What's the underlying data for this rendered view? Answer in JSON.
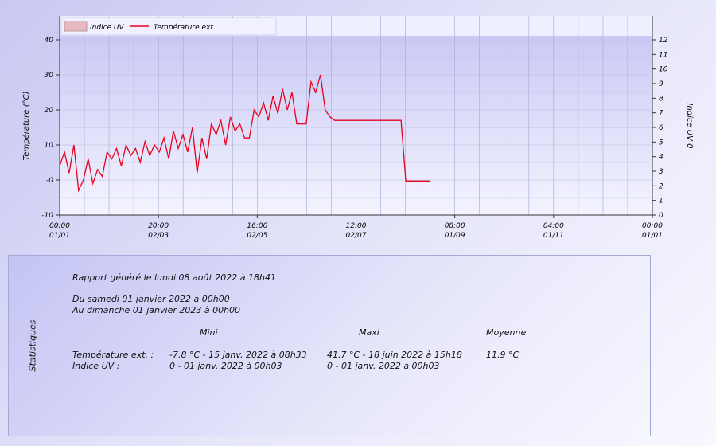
{
  "chart_data": {
    "type": "line",
    "legend": {
      "placement": "top-left",
      "items": [
        {
          "label": "Indice UV",
          "kind": "area",
          "color": "#e8b7c0"
        },
        {
          "label": "Température ext.",
          "kind": "line",
          "color": "#e8001c"
        }
      ]
    },
    "y_left": {
      "label": "Température (°C)",
      "range": [
        -10,
        40
      ],
      "ticks": [
        -10,
        "-0",
        10,
        20,
        30,
        40
      ]
    },
    "y_right": {
      "label": "Indice UV 0",
      "range": [
        0,
        12
      ],
      "ticks": [
        0,
        1,
        2,
        3,
        4,
        5,
        6,
        7,
        8,
        9,
        10,
        11,
        12
      ]
    },
    "x_ticks": [
      {
        "time": "00:00",
        "date": "01/01"
      },
      {
        "time": "20:00",
        "date": "02/03"
      },
      {
        "time": "16:00",
        "date": "02/05"
      },
      {
        "time": "12:00",
        "date": "02/07"
      },
      {
        "time": "08:00",
        "date": "01/09"
      },
      {
        "time": "04:00",
        "date": "01/11"
      },
      {
        "time": "00:00",
        "date": "01/01"
      }
    ],
    "grid": true,
    "series": [
      {
        "name": "Température ext.",
        "color": "#e8001c",
        "axis": "left",
        "x_fraction": [
          0,
          0.008,
          0.016,
          0.024,
          0.032,
          0.04,
          0.048,
          0.056,
          0.064,
          0.072,
          0.08,
          0.088,
          0.096,
          0.104,
          0.112,
          0.12,
          0.128,
          0.136,
          0.144,
          0.152,
          0.16,
          0.168,
          0.176,
          0.184,
          0.192,
          0.2,
          0.208,
          0.216,
          0.224,
          0.232,
          0.24,
          0.248,
          0.256,
          0.264,
          0.272,
          0.28,
          0.288,
          0.296,
          0.304,
          0.312,
          0.32,
          0.328,
          0.336,
          0.344,
          0.352,
          0.36,
          0.368,
          0.376,
          0.384,
          0.392,
          0.4,
          0.408,
          0.416,
          0.424,
          0.432,
          0.44,
          0.448,
          0.456,
          0.464,
          0.472,
          0.48,
          0.488,
          0.496,
          0.504,
          0.512,
          0.52,
          0.528,
          0.536,
          0.544,
          0.552,
          0.56,
          0.568,
          0.576,
          0.584,
          0.592,
          0.6,
          0.608,
          0.616,
          0.624
        ],
        "values": [
          4,
          8,
          2,
          10,
          -3,
          0,
          6,
          -1,
          3,
          1,
          8,
          6,
          9,
          4,
          10,
          7,
          9,
          5,
          11,
          7,
          10,
          8,
          12,
          6,
          14,
          9,
          13,
          8,
          15,
          2,
          12,
          6,
          16,
          13,
          17,
          10,
          18,
          14,
          16,
          12,
          12,
          20,
          18,
          22,
          17,
          24,
          19,
          26,
          20,
          25,
          16,
          16,
          16,
          28,
          25,
          30,
          20,
          18,
          17,
          17,
          17,
          17,
          17,
          17,
          17,
          17,
          17,
          17,
          17,
          17,
          17,
          17,
          17,
          -0.3,
          -0.3,
          -0.3,
          -0.3,
          -0.3,
          -0.3
        ]
      },
      {
        "name": "Indice UV",
        "color": "#e8b7c0",
        "axis": "right",
        "values": [
          0
        ]
      }
    ]
  },
  "stats": {
    "side_label": "Statistiques",
    "report": "Rapport généré le lundi 08 août 2022 à 18h41",
    "from": "Du samedi 01 janvier 2022 à 00h00",
    "to": "Au dimanche 01 janvier 2023 à 00h00",
    "headers": [
      "Mini",
      "Maxi",
      "Moyenne"
    ],
    "rows": [
      {
        "label": "Température ext. :",
        "min": "-7.8 °C - 15 janv. 2022 à 08h33",
        "max": "41.7 °C - 18 juin 2022 à 15h18",
        "avg": "11.9 °C"
      },
      {
        "label": "Indice UV :",
        "min": "0 - 01 janv. 2022 à 00h03",
        "max": "0 - 01 janv. 2022 à 00h03",
        "avg": ""
      }
    ]
  }
}
